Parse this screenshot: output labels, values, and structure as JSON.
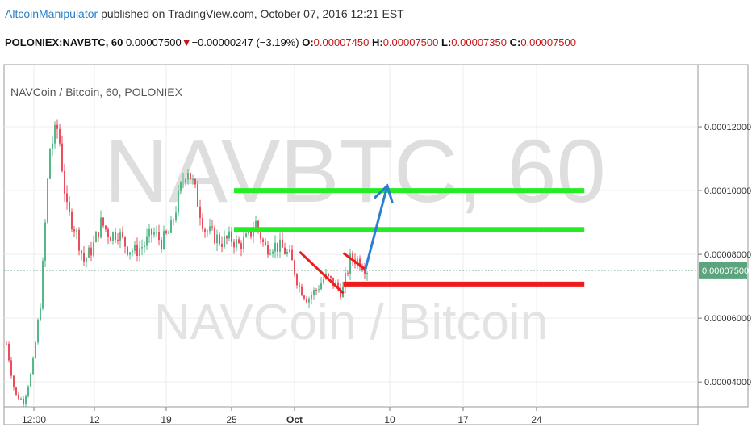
{
  "header": {
    "author": "AltcoinManipulator",
    "published_text": "published on TradingView.com, October 07, 2016 12:21 EST"
  },
  "quote": {
    "symbol": "POLONIEX:NAVBTC, 60",
    "last": "0.00007500",
    "change": "−0.00000247 (−3.19%)",
    "open_label": "O:",
    "open": "0.00007450",
    "high_label": "H:",
    "high": "0.00007500",
    "low_label": "L:",
    "low": "0.00007350",
    "close_label": "C:",
    "close": "0.00007500"
  },
  "chart_data": {
    "type": "candlestick",
    "title": "NAVCoin / Bitcoin, 60, POLONIEX",
    "watermark_symbol": "NAVBTC, 60",
    "watermark_name": "NAVCoin / Bitcoin",
    "x_tick_labels": [
      "12:00",
      "12",
      "19",
      "25",
      "Oct",
      "10",
      "17",
      "24"
    ],
    "y_tick_labels": [
      "0.00004000",
      "0.00006000",
      "0.00008000",
      "0.00010000",
      "0.00012000"
    ],
    "y_ticks": [
      4e-05,
      6e-05,
      8e-05,
      0.0001,
      0.00012
    ],
    "ylim": [
      3.22e-05,
      0.0001395
    ],
    "last_price_label": "0.00007500",
    "last_price": 7.5e-05,
    "series": [
      {
        "name": "price",
        "values": [
          5.2e-05,
          3.6e-05,
          3.4e-05,
          4.4e-05,
          6.6e-05,
          0.000113,
          0.00012,
          9.4e-05,
          8.8e-05,
          7.8e-05,
          8.2e-05,
          9e-05,
          8.6e-05,
          8.7e-05,
          8.2e-05,
          8.1e-05,
          8.3e-05,
          8.7e-05,
          8.4e-05,
          8.7e-05,
          9.8e-05,
          0.000108,
          9.9e-05,
          8.8e-05,
          8.6e-05,
          8.4e-05,
          8.5e-05,
          8.3e-05,
          8.5e-05,
          9e-05,
          8.2e-05,
          8.3e-05,
          8.2e-05,
          7.9e-05,
          7e-05,
          6.6e-05,
          6.9e-05,
          7.3e-05,
          7.1e-05,
          6.8e-05,
          7.9e-05,
          7.8e-05,
          7.5e-05
        ]
      }
    ],
    "annotations": [
      {
        "type": "hline",
        "color": "#22ee22",
        "y": 0.0001,
        "x_from": "2016-09-26",
        "x_to": "2016-10-28"
      },
      {
        "type": "hline",
        "color": "#22ee22",
        "y": 8.78e-05,
        "x_from": "2016-09-26",
        "x_to": "2016-10-28"
      },
      {
        "type": "hline",
        "color": "#ee1c1c",
        "y": 7.07e-05,
        "x_from": "2016-10-06",
        "x_to": "2016-10-28"
      },
      {
        "type": "segment",
        "color": "#ee1c1c",
        "from": [
          "2016-10-02",
          8.08e-05
        ],
        "to": [
          "2016-10-06",
          6.78e-05
        ]
      },
      {
        "type": "segment",
        "color": "#ee1c1c",
        "from": [
          "2016-10-06",
          8.04e-05
        ],
        "to": [
          "2016-10-08",
          7.53e-05
        ]
      },
      {
        "type": "arrow",
        "color": "#2a7fd4",
        "from": [
          "2016-10-08",
          7.53e-05
        ],
        "to": [
          "2016-10-10",
          0.0001015
        ]
      }
    ]
  }
}
